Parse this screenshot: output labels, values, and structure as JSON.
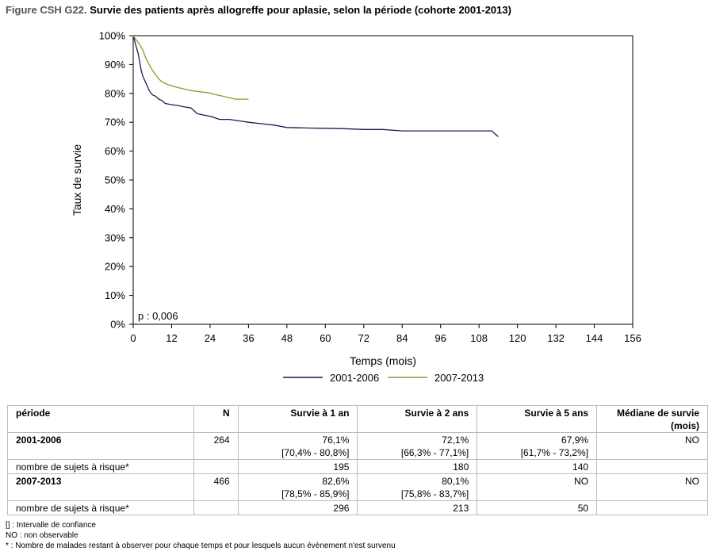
{
  "title": {
    "label": "Figure CSH G22.",
    "text": "Survie des patients après allogreffe pour aplasie, selon la période (cohorte 2001-2013)"
  },
  "chart_data": {
    "type": "line",
    "xlabel": "Temps (mois)",
    "ylabel": "Taux de survie",
    "xlim": [
      0,
      156
    ],
    "ylim": [
      0,
      100
    ],
    "xticks": [
      0,
      12,
      24,
      36,
      48,
      60,
      72,
      84,
      96,
      108,
      120,
      132,
      144,
      156
    ],
    "yticks": [
      0,
      10,
      20,
      30,
      40,
      50,
      60,
      70,
      80,
      90,
      100
    ],
    "ytick_labels": [
      "0%",
      "10%",
      "20%",
      "30%",
      "40%",
      "50%",
      "60%",
      "70%",
      "80%",
      "90%",
      "100%"
    ],
    "annotation": "p : 0,006",
    "legend_position": "bottom",
    "grid": false,
    "series": [
      {
        "name": "2001-2006",
        "color": "#1c1c4e",
        "x": [
          0,
          0.5,
          1,
          1.5,
          2,
          2.5,
          3,
          4,
          5,
          6,
          7,
          8,
          9,
          10,
          12,
          14,
          16,
          18,
          20,
          22,
          24,
          27,
          30,
          33,
          36,
          40,
          44,
          48,
          55,
          60,
          65,
          72,
          78,
          84,
          90,
          96,
          102,
          108,
          112,
          113,
          114
        ],
        "y": [
          100,
          98,
          96,
          94,
          91,
          88,
          86,
          83.5,
          81,
          79.5,
          79,
          78,
          77.5,
          76.5,
          76.1,
          75.8,
          75.3,
          75,
          73,
          72.5,
          72.1,
          71,
          71,
          70.5,
          70,
          69.5,
          69,
          68.2,
          68,
          67.9,
          67.8,
          67.5,
          67.5,
          67,
          67,
          67,
          67,
          67,
          67,
          66,
          65
        ]
      },
      {
        "name": "2007-2013",
        "color": "#8a9a2b",
        "x": [
          0,
          1,
          2,
          3,
          4,
          5,
          6,
          7,
          8,
          9,
          10,
          11,
          12,
          14,
          16,
          18,
          20,
          22,
          24,
          26,
          28,
          30,
          32,
          34,
          36
        ],
        "y": [
          100,
          98.5,
          97,
          95,
          92,
          90,
          88,
          86.5,
          85,
          84,
          83.5,
          83,
          82.6,
          82,
          81.5,
          81,
          80.7,
          80.4,
          80.1,
          79.5,
          79,
          78.5,
          78,
          78,
          78
        ]
      }
    ]
  },
  "table": {
    "headers": [
      "période",
      "N",
      "Survie à 1 an",
      "Survie à 2 ans",
      "Survie à 5 ans",
      "Médiane de survie (mois)"
    ],
    "rows": [
      {
        "periode": "2001-2006",
        "n": "264",
        "s1": "76,1%",
        "ci1": "[70,4% - 80,8%]",
        "s2": "72,1%",
        "ci2": "[66,3% - 77,1%]",
        "s5": "67,9%",
        "ci5": "[61,7% - 73,2%]",
        "median": "NO",
        "risk_label": "nombre de sujets à risque*",
        "r1": "195",
        "r2": "180",
        "r5": "140"
      },
      {
        "periode": "2007-2013",
        "n": "466",
        "s1": "82,6%",
        "ci1": "[78,5% - 85,9%]",
        "s2": "80,1%",
        "ci2": "[75,8% - 83,7%]",
        "s5": "NO",
        "ci5": "",
        "median": "NO",
        "risk_label": "nombre de sujets à risque*",
        "r1": "296",
        "r2": "213",
        "r5": "50"
      }
    ]
  },
  "notes": [
    "[] : Intervalle de confiance",
    "NO : non observable",
    "* : Nombre de malades restant à observer pour chaque temps et pour lesquels aucun évènement n'est survenu"
  ]
}
